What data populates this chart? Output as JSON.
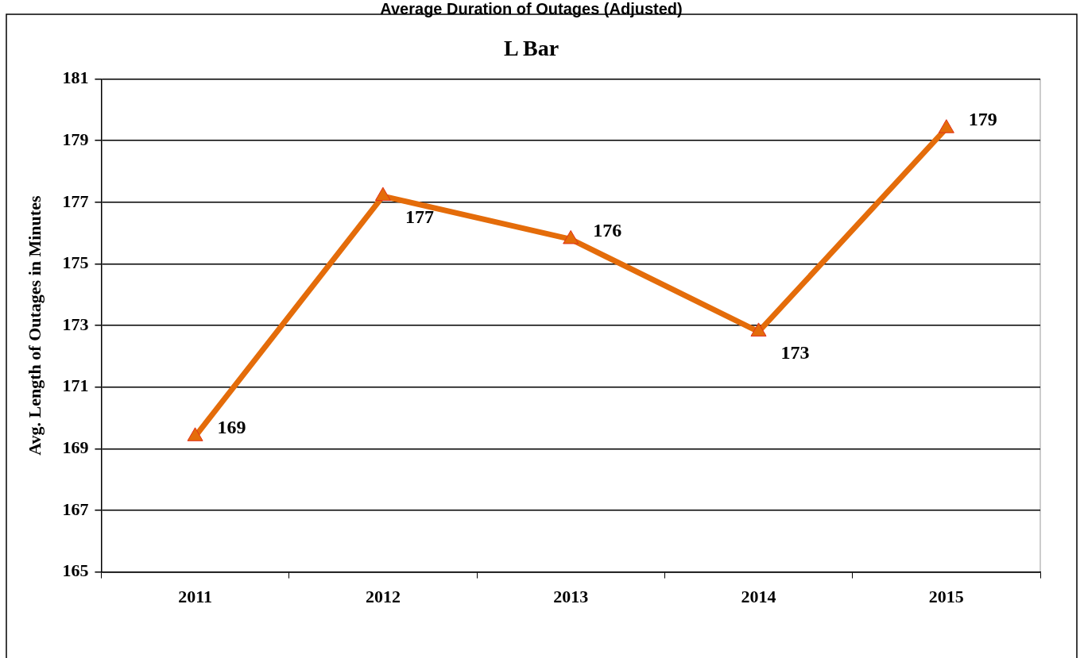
{
  "chart_data": {
    "type": "line",
    "title": "Average Duration of Outages (Adjusted)",
    "subtitle": "L Bar",
    "ylabel": "Avg. Length of Outages in Minutes",
    "categories": [
      "2011",
      "2012",
      "2013",
      "2014",
      "2015"
    ],
    "series": [
      {
        "color": "#e46c0a",
        "values": [
          169.4,
          177.2,
          175.8,
          172.8,
          179.4
        ],
        "value_labels": [
          "169",
          "177",
          "176",
          "173",
          "179"
        ]
      }
    ],
    "ylim": [
      165,
      181
    ],
    "yticks": [
      165,
      167,
      169,
      171,
      173,
      175,
      177,
      179,
      181
    ],
    "grid": "y",
    "marker": "triangle",
    "line_style": "solid",
    "legend": false
  }
}
